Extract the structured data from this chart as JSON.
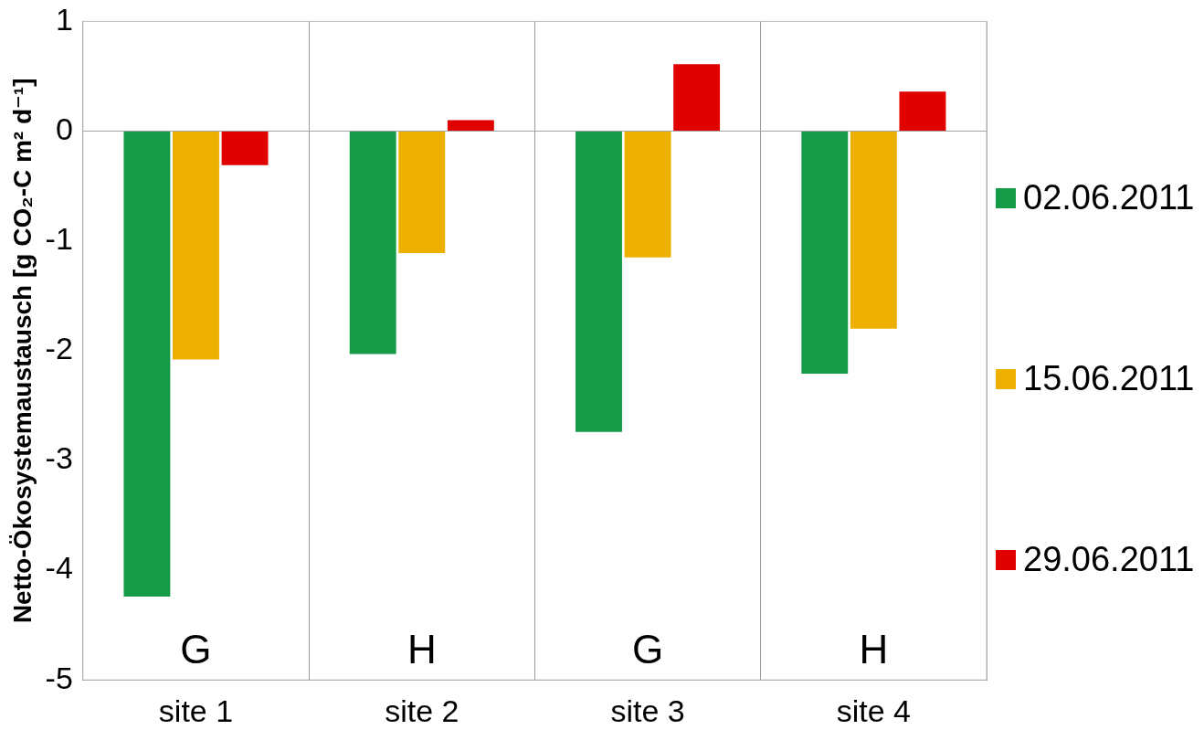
{
  "chart_data": {
    "type": "bar",
    "ylabel": "Netto-Ökosystemaustausch [g CO₂-C m² d⁻¹]",
    "categories": [
      "site 1",
      "site 2",
      "site 3",
      "site 4"
    ],
    "series": [
      {
        "name": "02.06.2011",
        "color": "#159a48",
        "values": [
          -4.24,
          -2.03,
          -2.74,
          -2.21
        ]
      },
      {
        "name": "15.06.2011",
        "color": "#eeb000",
        "values": [
          -2.08,
          -1.11,
          -1.15,
          -1.8
        ]
      },
      {
        "name": "29.06.2011",
        "color": "#e00000",
        "values": [
          -0.31,
          0.1,
          0.61,
          0.36
        ]
      }
    ],
    "ylim": [
      -5,
      1
    ],
    "yticks": [
      -5,
      -4,
      -3,
      -2,
      -1,
      0,
      1
    ],
    "grid": "x",
    "legend": "right",
    "annotations": [
      "G",
      "H",
      "G",
      "H"
    ]
  }
}
